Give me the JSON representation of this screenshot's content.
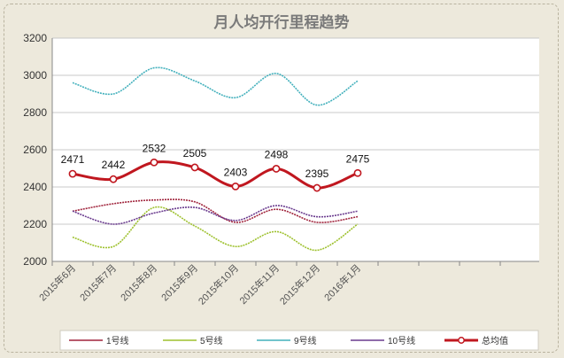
{
  "chart_data": {
    "type": "line",
    "title": "月人均开行里程趋势",
    "xlabel": "",
    "ylabel": "",
    "categories": [
      "2015年6月",
      "2015年7月",
      "2015年8月",
      "2015年9月",
      "2015年10月",
      "2015年11月",
      "2015年12月",
      "2016年1月"
    ],
    "ylim": [
      2000,
      3200
    ],
    "yticks": [
      2000,
      2200,
      2400,
      2600,
      2800,
      3000,
      3200
    ],
    "grid": true,
    "legend_position": "bottom",
    "series": [
      {
        "name": "1号线",
        "color": "#a0243c",
        "values": [
          2270,
          2310,
          2330,
          2320,
          2210,
          2280,
          2210,
          2240
        ]
      },
      {
        "name": "5号线",
        "color": "#9ec12e",
        "values": [
          2130,
          2080,
          2290,
          2190,
          2080,
          2160,
          2060,
          2200
        ]
      },
      {
        "name": "9号线",
        "color": "#42b0bc",
        "values": [
          2960,
          2900,
          3040,
          2970,
          2880,
          3010,
          2840,
          2970
        ]
      },
      {
        "name": "10号线",
        "color": "#6a3b8e",
        "values": [
          2270,
          2200,
          2260,
          2290,
          2220,
          2300,
          2240,
          2270
        ]
      },
      {
        "name": "总均值",
        "color": "#c0171f",
        "values": [
          2471,
          2442,
          2532,
          2505,
          2403,
          2498,
          2395,
          2475
        ],
        "labels": [
          "2471",
          "2442",
          "2532",
          "2505",
          "2403",
          "2498",
          "2395",
          "2475"
        ]
      }
    ]
  }
}
